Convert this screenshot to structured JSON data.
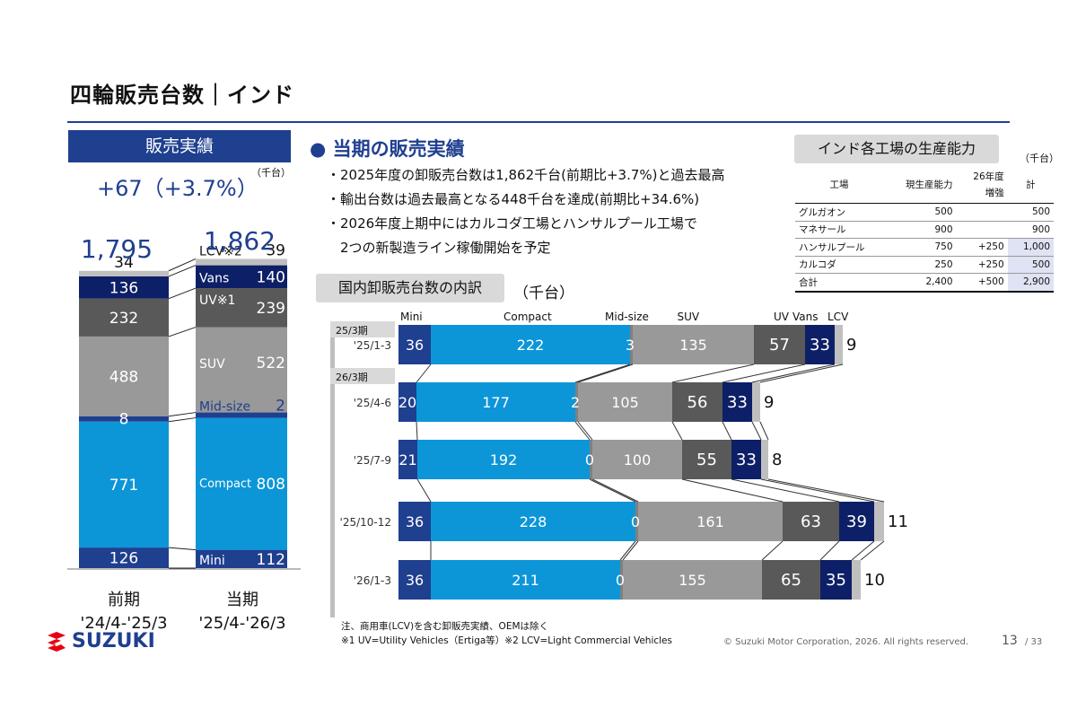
{
  "page": {
    "title": "四輪販売台数｜インド"
  },
  "left_panel": {
    "badge": "販売実績",
    "growth": "+67（+3.7%）",
    "unit": "（千台）"
  },
  "bullets": {
    "heading": "● 当期の販売実績",
    "items": [
      "・2025年度の卸販売台数は1,862千台(前期比+3.7%)と過去最高",
      "・輸出台数は過去最高となる448千台を達成(前期比+34.6%)",
      "・2026年度上期中にはカルコダ工場とハンサルプール工場で",
      "　2つの新製造ライン稼働開始を予定"
    ]
  },
  "capacity_table": {
    "badge": "インド各工場の生産能力",
    "unit": "（千台）",
    "headers": [
      "工場",
      "現生産能力",
      "26年度増強",
      "計"
    ],
    "header_split": [
      "26年度",
      "増強"
    ],
    "rows": [
      [
        "グルガオン",
        "500",
        "",
        "500"
      ],
      [
        "マネサール",
        "900",
        "",
        "900"
      ],
      [
        "ハンサルプール",
        "750",
        "+250",
        "1,000"
      ],
      [
        "カルコダ",
        "250",
        "+250",
        "500"
      ],
      [
        "合計",
        "2,400",
        "+500",
        "2,900"
      ]
    ]
  },
  "breakdown": {
    "badge": "国内卸販売台数の内訳",
    "unit": "（千台）",
    "group_prev": "25/3期",
    "group_curr": "26/3期"
  },
  "chart_data": [
    {
      "type": "bar",
      "stacked": true,
      "categories": [
        "前期\n'24/4-'25/3",
        "当期\n'25/4-'26/3"
      ],
      "category_lines": [
        [
          "前期",
          "'24/4-'25/3"
        ],
        [
          "当期",
          "'25/4-'26/3"
        ]
      ],
      "totals": [
        "1,795",
        "1,862"
      ],
      "series": [
        {
          "name": "Mini",
          "values": [
            126,
            112
          ]
        },
        {
          "name": "Compact",
          "values": [
            771,
            808
          ]
        },
        {
          "name": "Mid-size",
          "values": [
            8,
            2
          ]
        },
        {
          "name": "SUV",
          "values": [
            488,
            522
          ]
        },
        {
          "name": "UV※1",
          "values": [
            232,
            239
          ]
        },
        {
          "name": "Vans",
          "values": [
            136,
            140
          ]
        },
        {
          "name": "LCV※2",
          "values": [
            34,
            39
          ]
        }
      ],
      "colors": [
        "#1f3f8f",
        "#0c96d8",
        "#1f3f8f",
        "#999999",
        "#595959",
        "#0d1f66",
        "#bfbfbf"
      ]
    },
    {
      "type": "bar",
      "orientation": "horizontal",
      "stacked": true,
      "categories": [
        "'25/1-3",
        "'25/4-6",
        "'25/7-9",
        "'25/10-12",
        "'26/1-3"
      ],
      "series": [
        {
          "name": "Mini",
          "values": [
            36,
            20,
            21,
            36,
            36
          ]
        },
        {
          "name": "Compact",
          "values": [
            222,
            177,
            192,
            228,
            211
          ]
        },
        {
          "name": "Mid-size",
          "values": [
            3,
            2,
            0,
            0,
            0
          ]
        },
        {
          "name": "SUV",
          "values": [
            135,
            105,
            100,
            161,
            155
          ]
        },
        {
          "name": "UV",
          "values": [
            57,
            56,
            55,
            63,
            65
          ]
        },
        {
          "name": "Vans",
          "values": [
            33,
            33,
            33,
            39,
            35
          ]
        },
        {
          "name": "LCV",
          "values": [
            9,
            9,
            8,
            11,
            10
          ]
        }
      ],
      "colors": [
        "#1f3f8f",
        "#0c96d8",
        "#808080",
        "#999999",
        "#595959",
        "#0d1f66",
        "#bfbfbf"
      ]
    }
  ],
  "notes": [
    "注、商用車(LCV)を含む卸販売実績、OEMは除く",
    "※1 UV=Utility Vehicles（Ertiga等）※2 LCV=Light Commercial Vehicles"
  ],
  "footer": {
    "copyright": "© Suzuki Motor Corporation, 2026. All rights reserved.",
    "page": "13",
    "total_pages": "/ 33",
    "logo": "SUZUKI"
  }
}
